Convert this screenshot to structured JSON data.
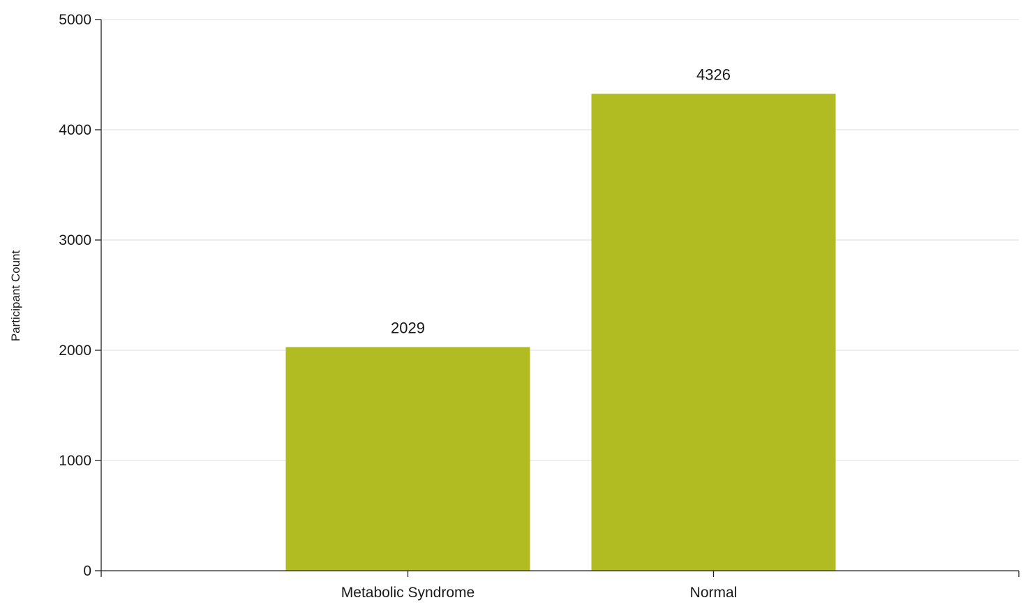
{
  "chart_data": {
    "type": "bar",
    "title": "",
    "xlabel": "",
    "ylabel": "Participant Count",
    "categories": [
      "Metabolic Syndrome",
      "Normal"
    ],
    "values": [
      2029,
      4326
    ],
    "data_labels": [
      "2029",
      "4326"
    ],
    "ylim": [
      0,
      5000
    ],
    "yticks": [
      0,
      1000,
      2000,
      3000,
      4000,
      5000
    ],
    "ytick_labels": [
      "0",
      "1000",
      "2000",
      "3000",
      "4000",
      "5000"
    ],
    "grid": true,
    "legend": "none",
    "bar_color": "#b0bc22",
    "grid_color": "#dcdcdc",
    "axis_color": "#222222"
  }
}
